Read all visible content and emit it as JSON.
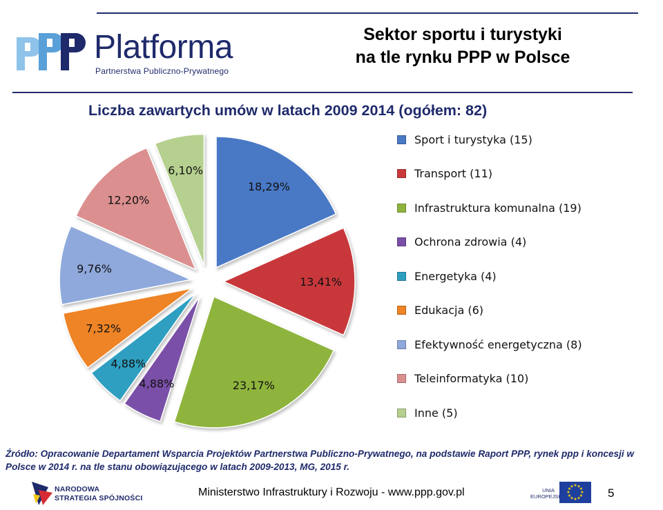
{
  "header": {
    "logo_wordmark": "Platforma",
    "logo_subtitle": "Partnerstwa Publiczno-Prywatnego",
    "title_line1": "Sektor sportu i turystyki",
    "title_line2": "na tle rynku PPP w Polsce"
  },
  "chart_data": {
    "type": "pie",
    "title": "Liczba zawartych umów w latach 2009 2014 (ogółem: 82)",
    "slices": [
      {
        "name": "Sport i turystyka (15)",
        "count": 15,
        "percent_label": "18,29%",
        "color": "#4a79c5"
      },
      {
        "name": "Transport (11)",
        "count": 11,
        "percent_label": "13,41%",
        "color": "#c8393b"
      },
      {
        "name": "Infrastruktura komunalna (19)",
        "count": 19,
        "percent_label": "23,17%",
        "color": "#8eb43e"
      },
      {
        "name": "Ochrona zdrowia (4)",
        "count": 4,
        "percent_label": "4,88%",
        "color": "#7a4fa8"
      },
      {
        "name": "Energetyka (4)",
        "count": 4,
        "percent_label": "4,88%",
        "color": "#2f9fc0"
      },
      {
        "name": "Edukacja (6)",
        "count": 6,
        "percent_label": "7,32%",
        "color": "#ee8426"
      },
      {
        "name": "Efektywność energetyczna (8)",
        "count": 8,
        "percent_label": "9,76%",
        "color": "#8fa9dc"
      },
      {
        "name": "Teleinformatyka (10)",
        "count": 10,
        "percent_label": "12,20%",
        "color": "#dc8f8f"
      },
      {
        "name": "Inne (5)",
        "count": 5,
        "percent_label": "6,10%",
        "color": "#b6d08f"
      }
    ],
    "legend_position": "right"
  },
  "source_note": "Źródło: Opracowanie Departament Wsparcia Projektów Partnerstwa Publiczno-Prywatnego, na podstawie Raport PPP, rynek ppp i koncesji w Polsce w 2014 r. na tle stanu obowiązującego w latach 2009-2013, MG, 2015 r.",
  "footer": {
    "ns_line1": "NARODOWA",
    "ns_line2": "STRATEGIA SPÓJNOŚCI",
    "ministry_text": "Ministerstwo Infrastruktury i Rozwoju - www.ppp.gov.pl",
    "eu_line1": "UNIA",
    "eu_line2": "EUROPEJSKA",
    "page_number": "5"
  },
  "colors": {
    "navy": "#1f2a6b",
    "logo_light_blue": "#5aa0d8"
  }
}
